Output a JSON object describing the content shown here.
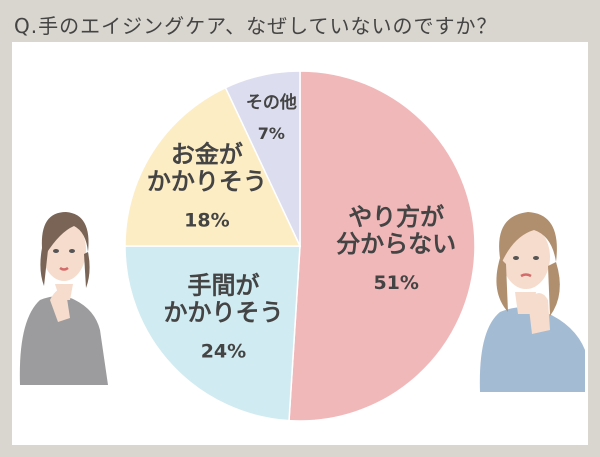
{
  "title": "Q.手のエイジングケア、なぜしていないのですか？",
  "chart_data": {
    "type": "pie",
    "slices": [
      {
        "label_lines": [
          "やり方が",
          "分からない"
        ],
        "value": 51,
        "value_text": "51%",
        "color": "#f1b8ba"
      },
      {
        "label_lines": [
          "手間が",
          "かかりそう"
        ],
        "value": 24,
        "value_text": "24%",
        "color": "#d0ebf1"
      },
      {
        "label_lines": [
          "お金が",
          "かかりそう"
        ],
        "value": 18,
        "value_text": "18%",
        "color": "#fcedc5"
      },
      {
        "label_lines": [
          "その他"
        ],
        "value": 7,
        "value_text": "7%",
        "color": "#dcdeef"
      }
    ]
  }
}
